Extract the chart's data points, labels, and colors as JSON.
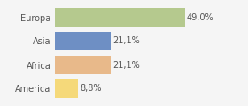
{
  "categories": [
    "Europa",
    "Asia",
    "Africa",
    "America"
  ],
  "values": [
    49.0,
    21.1,
    21.1,
    8.8
  ],
  "labels": [
    "49,0%",
    "21,1%",
    "21,1%",
    "8,8%"
  ],
  "bar_colors": [
    "#b5c98e",
    "#6e8fc4",
    "#e8b98a",
    "#f5d97a"
  ],
  "background_color": "#f5f5f5",
  "xlim": [
    0,
    56
  ],
  "bar_height": 0.75,
  "label_fontsize": 7.0,
  "tick_fontsize": 7.0,
  "text_color": "#555555"
}
